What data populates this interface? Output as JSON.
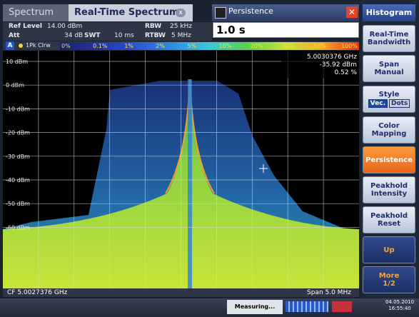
{
  "tabs": [
    "Spectrum",
    "Real-Time Spectrum"
  ],
  "dialog": {
    "title": "Persistence",
    "value": "1.0 s"
  },
  "settings": [
    {
      "label": "Ref Level",
      "value": "14.00 dBm"
    },
    {
      "label": "RBW",
      "value": "25 kHz"
    },
    {
      "label": "Att",
      "value": "34 dB"
    },
    {
      "label": "SWT",
      "value": "10 ms"
    },
    {
      "label": "RTBW",
      "value": "5 MHz"
    }
  ],
  "legend": {
    "trace": "A",
    "mode": "1Pk Clrw",
    "scale": [
      "0%",
      "0.1%",
      "1%",
      "2%",
      "5%",
      "10%",
      "20%",
      "30%",
      "50%",
      "100%"
    ]
  },
  "y_labels": [
    "10 dBm",
    "0 dBm",
    "-10 dBm",
    "-20 dBm",
    "-30 dBm",
    "-40 dBm",
    "-50 dBm",
    "-60 dBm"
  ],
  "marker": [
    "5.0030376 GHz",
    "-35.92 dBm",
    "0.52 %"
  ],
  "footer": {
    "center": "CF 5.0027376 GHz",
    "span": "Span 5.0 MHz"
  },
  "status": {
    "message": "Measuring...",
    "date": "04.05.2010",
    "time": "16:55:40"
  },
  "menu_title": "Histogram",
  "softkeys": [
    {
      "lines": [
        "Real-Time",
        "Bandwidth"
      ]
    },
    {
      "lines": [
        "Span",
        "Manual"
      ]
    },
    {
      "lines": [
        "Style"
      ],
      "options": [
        "Vec.",
        "Dots"
      ]
    },
    {
      "lines": [
        "Color",
        "Mapping"
      ]
    },
    {
      "lines": [
        "Persistence"
      ],
      "active": true
    },
    {
      "lines": [
        "Peakhold",
        "Intensity"
      ]
    },
    {
      "lines": [
        "Peakhold",
        "Reset"
      ]
    },
    {
      "lines": [
        "Up"
      ]
    },
    {
      "lines": [
        "More",
        "1/2"
      ]
    }
  ]
}
